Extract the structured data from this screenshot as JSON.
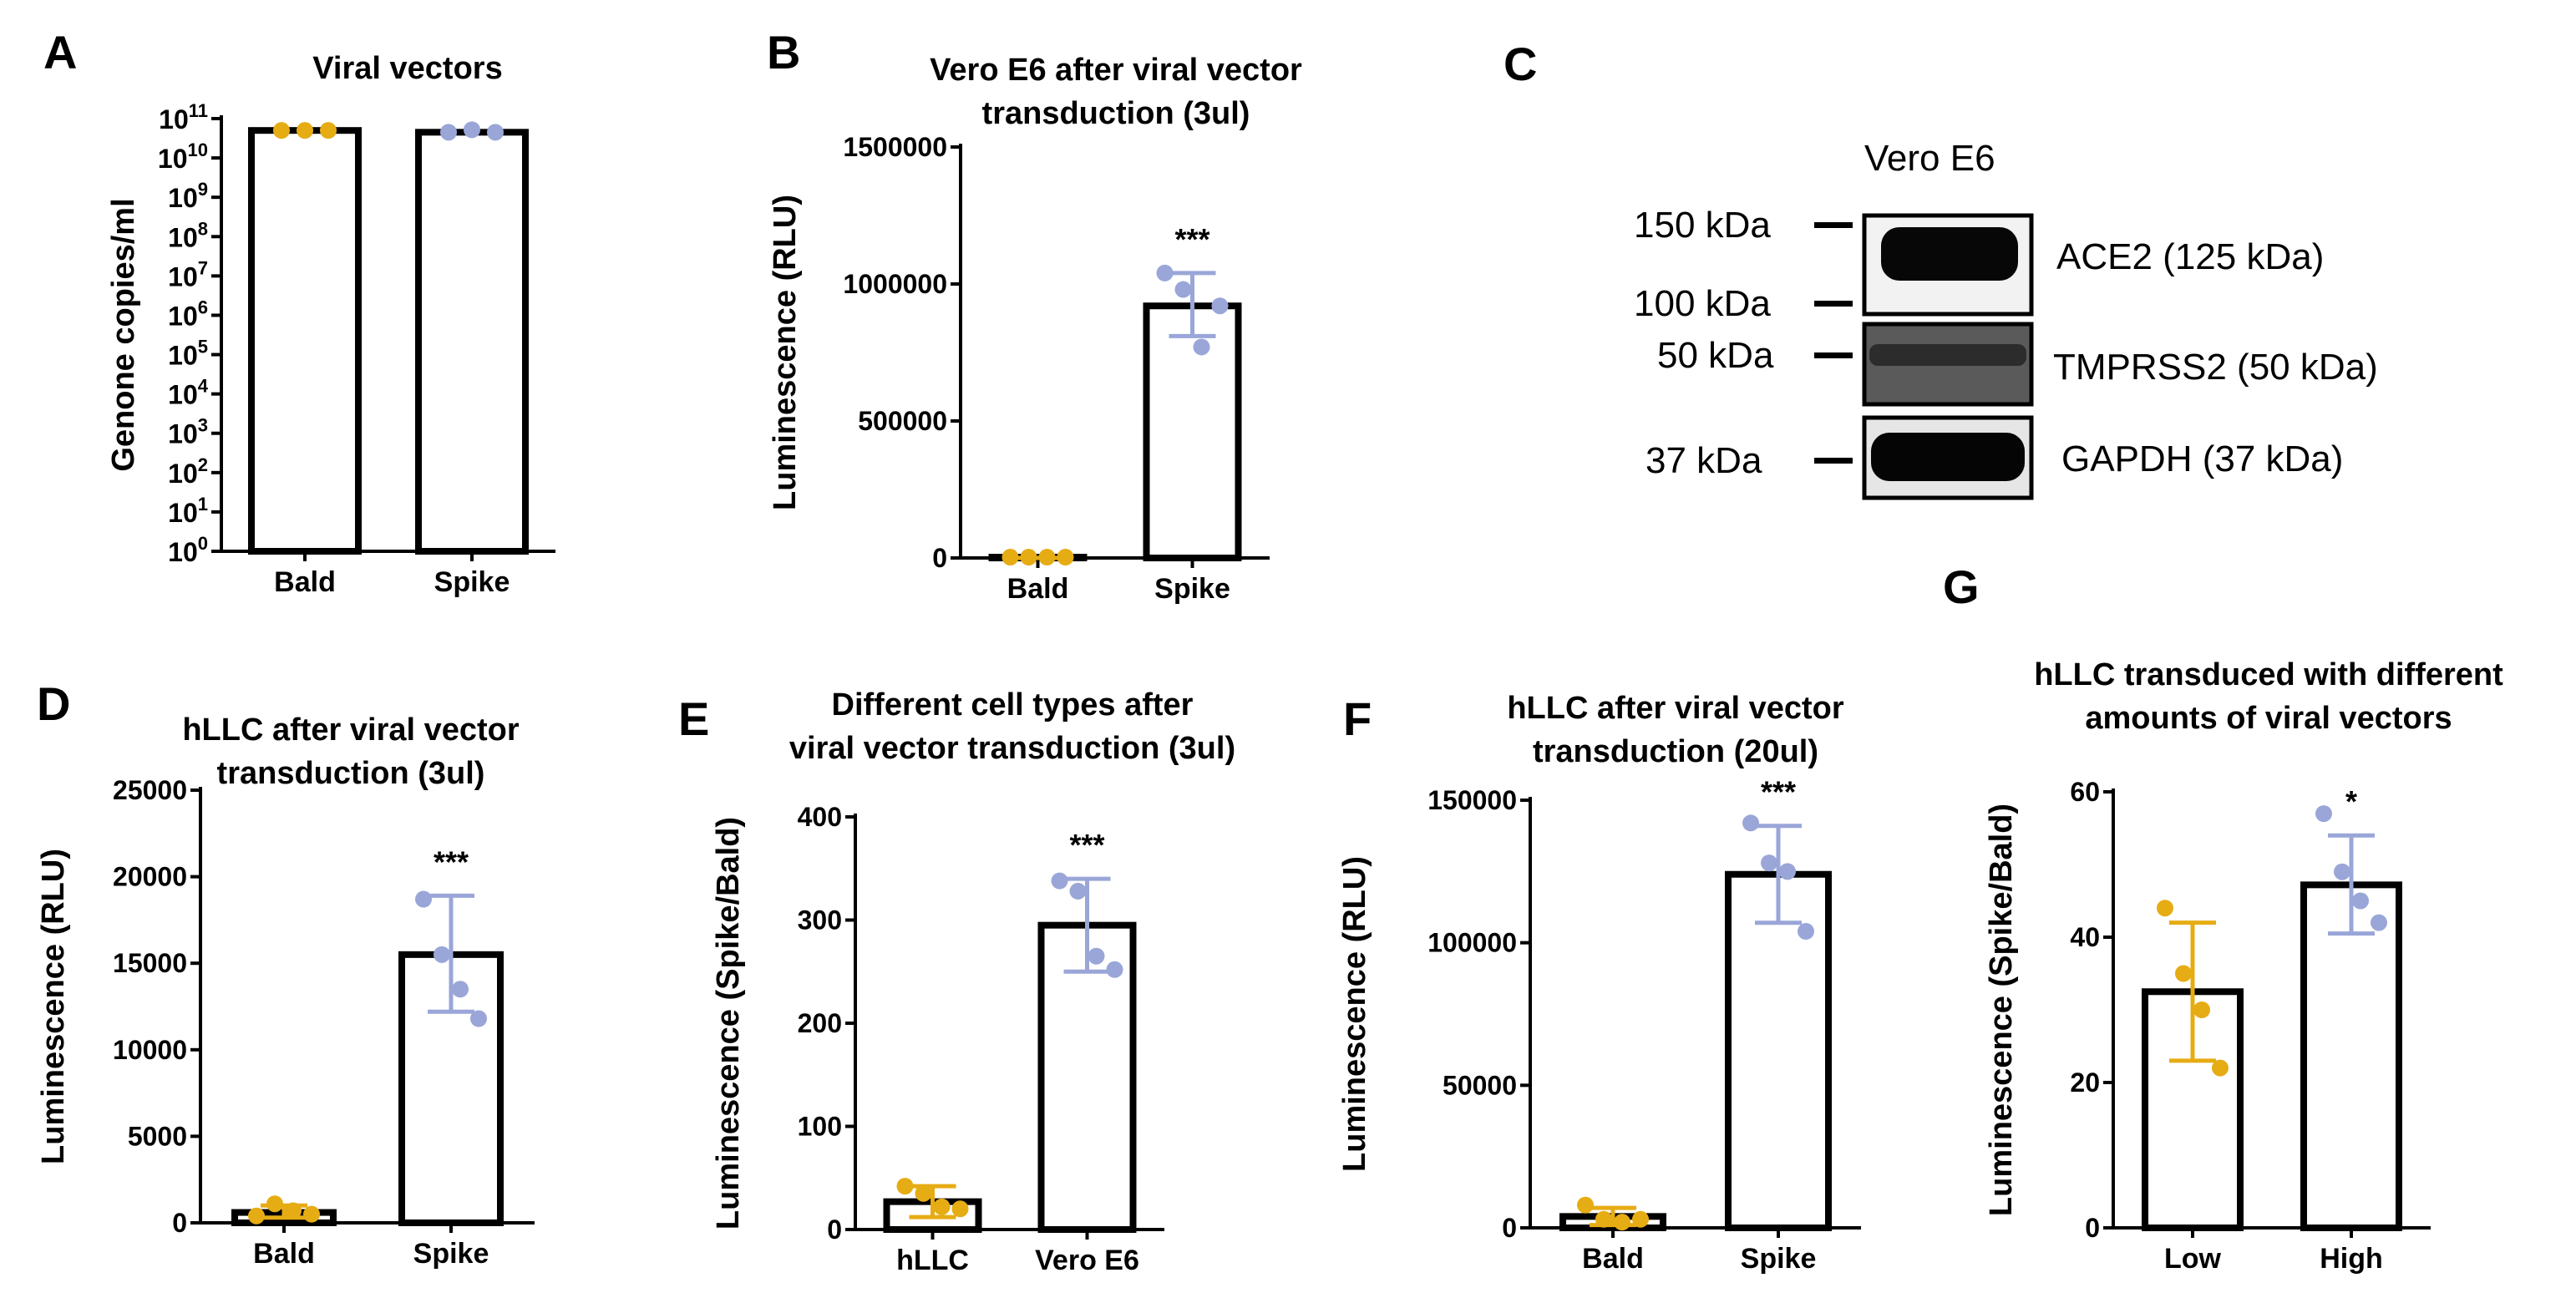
{
  "colors": {
    "bald": "#E6AC14",
    "spike": "#9AA6D8",
    "axis": "#000000",
    "bar_fill": "#ffffff"
  },
  "panels": {
    "A": {
      "letter": "A"
    },
    "B": {
      "letter": "B"
    },
    "C": {
      "letter": "C",
      "cell_line": "Vero E6",
      "markers": [
        "150 kDa",
        "100 kDa",
        "50 kDa",
        "37 kDa"
      ],
      "bands": [
        "ACE2 (125 kDa)",
        "TMPRSS2 (50 kDa)",
        "GAPDH (37 kDa)"
      ]
    },
    "D": {
      "letter": "D"
    },
    "E": {
      "letter": "E"
    },
    "F": {
      "letter": "F"
    },
    "G": {
      "letter": "G"
    }
  },
  "chart_data": [
    {
      "id": "A",
      "type": "bar",
      "yscale": "log",
      "title": [
        "Viral vectors"
      ],
      "ylabel": "Genone copies/ml",
      "categories": [
        "Bald",
        "Spike"
      ],
      "values": [
        50000000000.0,
        45000000000.0
      ],
      "points": [
        [
          50000000000.0,
          50000000000.0,
          50000000000.0
        ],
        [
          45000000000.0,
          52000000000.0,
          45000000000.0
        ]
      ],
      "error": [
        null,
        null
      ],
      "ylim": [
        1,
        100000000000.0
      ],
      "yticks": [
        1,
        10,
        100,
        1000,
        10000,
        100000,
        1000000,
        10000000,
        100000000,
        1000000000,
        10000000000,
        100000000000
      ],
      "ytick_base": "10",
      "ytick_exps": [
        "0",
        "1",
        "2",
        "3",
        "4",
        "5",
        "6",
        "7",
        "8",
        "9",
        "10",
        "11"
      ],
      "significance": [
        "",
        ""
      ]
    },
    {
      "id": "B",
      "type": "bar",
      "title": [
        "Vero E6 after viral vector",
        "transduction (3ul)"
      ],
      "ylabel": "Luminescence (RLU)",
      "categories": [
        "Bald",
        "Spike"
      ],
      "values": [
        3000,
        920000
      ],
      "points": [
        [
          3000,
          3000,
          3000,
          3000
        ],
        [
          1040000,
          980000,
          770000,
          920000
        ]
      ],
      "error": [
        [
          0,
          0
        ],
        [
          810000,
          1040000
        ]
      ],
      "ylim": [
        0,
        1500000
      ],
      "yticks": [
        0,
        500000,
        1000000,
        1500000
      ],
      "ytick_labels": [
        "0",
        "500000",
        "1000000",
        "1500000"
      ],
      "significance": [
        "",
        "***"
      ]
    },
    {
      "id": "D",
      "type": "bar",
      "title": [
        "hLLC after viral vector",
        "transduction (3ul)"
      ],
      "ylabel": "Luminescence (RLU)",
      "categories": [
        "Bald",
        "Spike"
      ],
      "values": [
        600,
        15500
      ],
      "points": [
        [
          400,
          1100,
          700,
          500
        ],
        [
          18700,
          15500,
          13500,
          11800
        ]
      ],
      "error": [
        [
          300,
          1000
        ],
        [
          12200,
          18900
        ]
      ],
      "ylim": [
        0,
        25000
      ],
      "yticks": [
        0,
        5000,
        10000,
        15000,
        20000,
        25000
      ],
      "ytick_labels": [
        "0",
        "5000",
        "10000",
        "15000",
        "20000",
        "25000"
      ],
      "significance": [
        "",
        "***"
      ]
    },
    {
      "id": "E",
      "type": "bar",
      "title": [
        "Different cell types after",
        "viral vector transduction (3ul)"
      ],
      "ylabel": "Luminescence (Spike/Bald)",
      "categories": [
        "hLLC",
        "Vero E6"
      ],
      "values": [
        27,
        295
      ],
      "points": [
        [
          42,
          35,
          22,
          20
        ],
        [
          338,
          328,
          265,
          252
        ]
      ],
      "error": [
        [
          12,
          42
        ],
        [
          250,
          340
        ]
      ],
      "ylim": [
        0,
        400
      ],
      "yticks": [
        0,
        100,
        200,
        300,
        400
      ],
      "ytick_labels": [
        "0",
        "100",
        "200",
        "300",
        "400"
      ],
      "significance": [
        "",
        "***"
      ]
    },
    {
      "id": "F",
      "type": "bar",
      "title": [
        "hLLC after viral vector",
        "transduction (20ul)"
      ],
      "ylabel": "Luminescence (RLU)",
      "categories": [
        "Bald",
        "Spike"
      ],
      "values": [
        4000,
        124000
      ],
      "points": [
        [
          8000,
          3000,
          2000,
          3000
        ],
        [
          142000,
          128000,
          125000,
          104000
        ]
      ],
      "error": [
        [
          1000,
          7000
        ],
        [
          107000,
          141000
        ]
      ],
      "ylim": [
        0,
        150000
      ],
      "yticks": [
        0,
        50000,
        100000,
        150000
      ],
      "ytick_labels": [
        "0",
        "50000",
        "100000",
        "150000"
      ],
      "significance": [
        "",
        "***"
      ]
    },
    {
      "id": "G",
      "type": "bar",
      "title": [
        "hLLC transduced with different",
        "amounts of viral vectors"
      ],
      "ylabel": "Luminescence (Spike/Bald)",
      "categories": [
        "Low",
        "High"
      ],
      "values": [
        32.5,
        47.2
      ],
      "points": [
        [
          44,
          35,
          30,
          22
        ],
        [
          57,
          49,
          45,
          42
        ]
      ],
      "error": [
        [
          23,
          42
        ],
        [
          40.5,
          54
        ]
      ],
      "ylim": [
        0,
        60
      ],
      "yticks": [
        0,
        20,
        40,
        60
      ],
      "ytick_labels": [
        "0",
        "20",
        "40",
        "60"
      ],
      "significance": [
        "",
        "*"
      ]
    }
  ]
}
